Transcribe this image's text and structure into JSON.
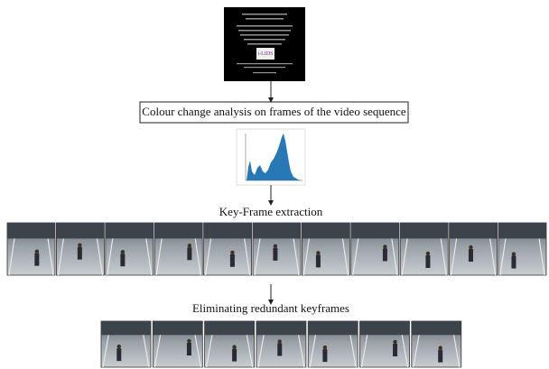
{
  "steps": [
    {
      "label": "Colour change analysis on frames of the video sequence"
    },
    {
      "label": "Key-Frame extraction"
    },
    {
      "label": "Eliminating redundant keyframes"
    }
  ]
}
